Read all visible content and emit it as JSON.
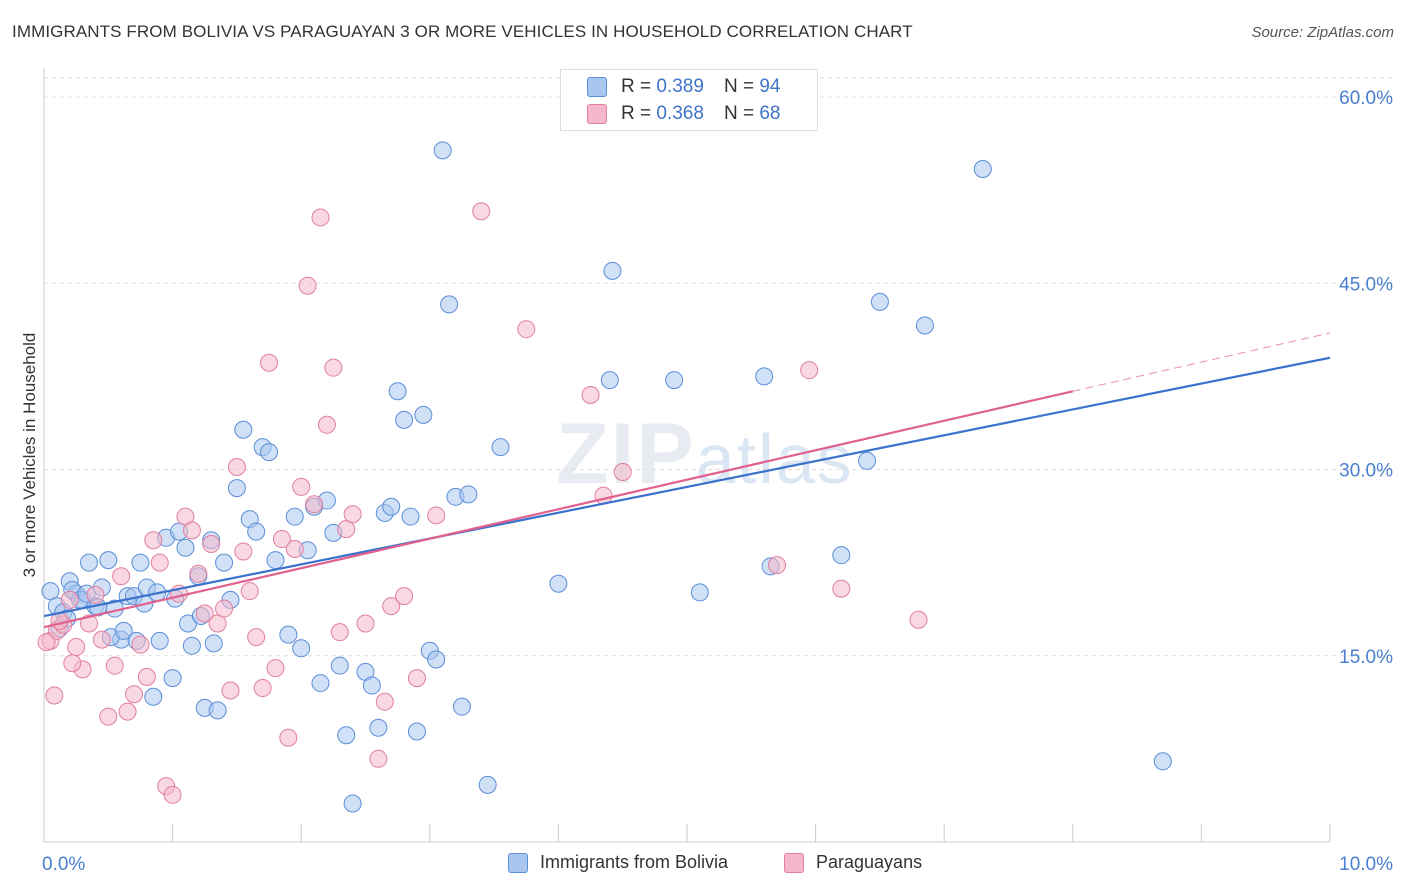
{
  "title": "IMMIGRANTS FROM BOLIVIA VS PARAGUAYAN 3 OR MORE VEHICLES IN HOUSEHOLD CORRELATION CHART",
  "source": "Source: ZipAtlas.com",
  "watermark": {
    "zip": "ZIP",
    "atlas": "atlas"
  },
  "colors": {
    "blue_fill": "#a9c6ef",
    "blue_stroke": "#5b8ed8",
    "blue_line": "#3b72cc",
    "pink_fill": "#f5b8cb",
    "pink_stroke": "#e07fa0",
    "pink_line": "#e0608e",
    "tick_text": "#4a7fd0",
    "grid": "#dddddd"
  },
  "legend": {
    "rows": [
      {
        "r_label": "R =",
        "r_value": "0.389",
        "n_label": "N =",
        "n_value": "94"
      },
      {
        "r_label": "R =",
        "r_value": "0.368",
        "n_label": "N =",
        "n_value": "68"
      }
    ]
  },
  "bottom_legend": [
    "Immigrants from Bolivia",
    "Paraguayans"
  ],
  "chart_data": {
    "type": "scatter",
    "title": "IMMIGRANTS FROM BOLIVIA VS PARAGUAYAN 3 OR MORE VEHICLES IN HOUSEHOLD CORRELATION CHART",
    "xlabel": "",
    "ylabel": "3 or more Vehicles in Household",
    "xlim": [
      0,
      10
    ],
    "ylim": [
      0,
      60
    ],
    "x_tick_labels": [
      "0.0%",
      "10.0%"
    ],
    "y_ticks": [
      15,
      30,
      45,
      60
    ],
    "y_tick_labels": [
      "15.0%",
      "30.0%",
      "45.0%",
      "60.0%"
    ],
    "series": [
      {
        "name": "Immigrants from Bolivia",
        "r": 0.389,
        "n": 94,
        "trend": {
          "x0": 0,
          "y0": 18.2,
          "x1": 10,
          "y1": 39.0
        },
        "points": [
          [
            0.05,
            20.2
          ],
          [
            0.1,
            19.0
          ],
          [
            0.15,
            18.5
          ],
          [
            0.2,
            21.0
          ],
          [
            0.25,
            20.0
          ],
          [
            0.3,
            19.5
          ],
          [
            0.35,
            22.5
          ],
          [
            0.4,
            19.0
          ],
          [
            0.45,
            20.5
          ],
          [
            0.5,
            22.7
          ],
          [
            0.55,
            18.8
          ],
          [
            0.6,
            16.3
          ],
          [
            0.65,
            19.8
          ],
          [
            0.7,
            19.8
          ],
          [
            0.75,
            22.5
          ],
          [
            0.8,
            20.5
          ],
          [
            0.85,
            11.7
          ],
          [
            0.9,
            16.2
          ],
          [
            0.95,
            24.5
          ],
          [
            1.0,
            13.2
          ],
          [
            1.05,
            25.0
          ],
          [
            1.1,
            23.7
          ],
          [
            1.15,
            15.8
          ],
          [
            1.2,
            21.4
          ],
          [
            1.25,
            10.8
          ],
          [
            1.3,
            24.3
          ],
          [
            1.35,
            10.6
          ],
          [
            1.4,
            22.5
          ],
          [
            1.45,
            19.5
          ],
          [
            1.5,
            28.5
          ],
          [
            1.55,
            33.2
          ],
          [
            1.6,
            26.0
          ],
          [
            1.65,
            25.0
          ],
          [
            1.7,
            31.8
          ],
          [
            1.75,
            31.4
          ],
          [
            1.8,
            22.7
          ],
          [
            1.9,
            16.7
          ],
          [
            1.95,
            26.2
          ],
          [
            2.0,
            15.6
          ],
          [
            2.05,
            23.5
          ],
          [
            2.1,
            27.0
          ],
          [
            2.15,
            12.8
          ],
          [
            2.2,
            27.5
          ],
          [
            2.25,
            24.9
          ],
          [
            2.3,
            14.2
          ],
          [
            2.35,
            8.6
          ],
          [
            2.4,
            3.1
          ],
          [
            2.5,
            13.7
          ],
          [
            2.55,
            12.6
          ],
          [
            2.6,
            9.2
          ],
          [
            2.65,
            26.5
          ],
          [
            2.7,
            27.0
          ],
          [
            2.75,
            36.3
          ],
          [
            2.8,
            34.0
          ],
          [
            2.85,
            26.2
          ],
          [
            2.9,
            8.9
          ],
          [
            2.95,
            34.4
          ],
          [
            3.0,
            15.4
          ],
          [
            3.05,
            14.7
          ],
          [
            3.1,
            55.7
          ],
          [
            3.15,
            43.3
          ],
          [
            3.2,
            27.8
          ],
          [
            3.25,
            10.9
          ],
          [
            3.3,
            28.0
          ],
          [
            3.45,
            4.6
          ],
          [
            3.55,
            31.8
          ],
          [
            4.0,
            20.8
          ],
          [
            4.4,
            37.2
          ],
          [
            4.42,
            46.0
          ],
          [
            4.9,
            37.2
          ],
          [
            5.1,
            20.1
          ],
          [
            5.6,
            37.5
          ],
          [
            5.65,
            22.2
          ],
          [
            6.2,
            23.1
          ],
          [
            6.4,
            30.7
          ],
          [
            6.5,
            43.5
          ],
          [
            6.85,
            41.6
          ],
          [
            7.3,
            54.2
          ],
          [
            8.7,
            6.5
          ],
          [
            0.12,
            17.2
          ],
          [
            0.18,
            18.0
          ],
          [
            0.22,
            20.3
          ],
          [
            0.28,
            19.5
          ],
          [
            0.33,
            20.0
          ],
          [
            0.42,
            18.9
          ],
          [
            0.52,
            16.5
          ],
          [
            0.62,
            17.0
          ],
          [
            0.72,
            16.2
          ],
          [
            0.78,
            19.2
          ],
          [
            0.88,
            20.1
          ],
          [
            1.02,
            19.6
          ],
          [
            1.12,
            17.6
          ],
          [
            1.22,
            18.2
          ],
          [
            1.32,
            16.0
          ]
        ]
      },
      {
        "name": "Paraguayans",
        "r": 0.368,
        "n": 68,
        "trend": {
          "x0": 0,
          "y0": 17.3,
          "x1": 8.0,
          "y1": 36.3,
          "dash_x1": 10,
          "dash_y1": 41.0
        },
        "points": [
          [
            0.05,
            16.2
          ],
          [
            0.08,
            11.8
          ],
          [
            0.1,
            17.0
          ],
          [
            0.15,
            17.5
          ],
          [
            0.2,
            19.5
          ],
          [
            0.25,
            15.7
          ],
          [
            0.3,
            13.9
          ],
          [
            0.35,
            17.6
          ],
          [
            0.4,
            19.9
          ],
          [
            0.45,
            16.3
          ],
          [
            0.5,
            10.1
          ],
          [
            0.55,
            14.2
          ],
          [
            0.6,
            21.4
          ],
          [
            0.65,
            10.5
          ],
          [
            0.7,
            11.9
          ],
          [
            0.75,
            15.9
          ],
          [
            0.8,
            13.3
          ],
          [
            0.85,
            24.3
          ],
          [
            0.9,
            22.5
          ],
          [
            0.95,
            4.5
          ],
          [
            1.0,
            3.8
          ],
          [
            1.05,
            20.0
          ],
          [
            1.1,
            26.2
          ],
          [
            1.15,
            25.1
          ],
          [
            1.2,
            21.6
          ],
          [
            1.25,
            18.4
          ],
          [
            1.3,
            24.0
          ],
          [
            1.35,
            17.6
          ],
          [
            1.4,
            18.8
          ],
          [
            1.45,
            12.2
          ],
          [
            1.5,
            30.2
          ],
          [
            1.55,
            23.4
          ],
          [
            1.6,
            20.2
          ],
          [
            1.65,
            16.5
          ],
          [
            1.7,
            12.4
          ],
          [
            1.75,
            38.6
          ],
          [
            1.8,
            14.0
          ],
          [
            1.85,
            24.4
          ],
          [
            1.9,
            8.4
          ],
          [
            1.95,
            23.6
          ],
          [
            2.0,
            28.6
          ],
          [
            2.05,
            44.8
          ],
          [
            2.1,
            27.2
          ],
          [
            2.15,
            50.3
          ],
          [
            2.2,
            33.6
          ],
          [
            2.25,
            38.2
          ],
          [
            2.3,
            16.9
          ],
          [
            2.35,
            25.2
          ],
          [
            2.4,
            26.4
          ],
          [
            2.5,
            17.6
          ],
          [
            2.6,
            6.7
          ],
          [
            2.65,
            11.3
          ],
          [
            2.7,
            19.0
          ],
          [
            2.8,
            19.8
          ],
          [
            2.9,
            13.2
          ],
          [
            3.05,
            26.3
          ],
          [
            3.4,
            50.8
          ],
          [
            3.75,
            41.3
          ],
          [
            4.25,
            36.0
          ],
          [
            4.35,
            27.9
          ],
          [
            4.5,
            29.8
          ],
          [
            5.7,
            22.3
          ],
          [
            5.95,
            38.0
          ],
          [
            6.2,
            20.4
          ],
          [
            6.8,
            17.9
          ],
          [
            0.02,
            16.1
          ],
          [
            0.12,
            17.8
          ],
          [
            0.22,
            14.4
          ]
        ]
      }
    ]
  }
}
